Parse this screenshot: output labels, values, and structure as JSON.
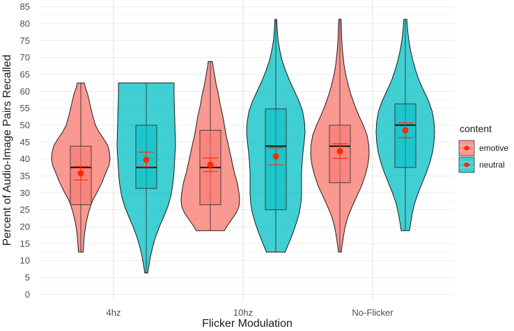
{
  "chart_data": {
    "type": "violin",
    "xlabel": "Flicker Modulation",
    "ylabel": "Percent of Audio-Image Pairs Recalled",
    "categories": [
      "4hz",
      "10hz",
      "No-Flicker"
    ],
    "y_ticks": [
      "0",
      "5",
      "10",
      "15",
      "20",
      "25",
      "30",
      "35",
      "40",
      "45",
      "50",
      "55",
      "60",
      "65",
      "70",
      "75",
      "80",
      "85"
    ],
    "ylim": [
      -2,
      87
    ],
    "grid": true,
    "legend": {
      "title": "content",
      "placement": "right",
      "items": [
        {
          "label": "emotive",
          "color": "#F8766D"
        },
        {
          "label": "neutral",
          "color": "#00BFC4"
        }
      ]
    },
    "point_color": "#ff2a00",
    "series": [
      {
        "name": "emotive",
        "color": "#F8766D",
        "groups": [
          {
            "category": "4hz",
            "min": 12.5,
            "q1": 26.5,
            "median": 37.5,
            "q3": 43.8,
            "max": 62.5,
            "mean": 35.8,
            "se_low": 33.8,
            "se_high": 37.8,
            "density": [
              [
                12.5,
                0.08
              ],
              [
                15,
                0.1
              ],
              [
                18,
                0.13
              ],
              [
                21,
                0.18
              ],
              [
                24,
                0.26
              ],
              [
                26.5,
                0.35
              ],
              [
                28,
                0.42
              ],
              [
                30,
                0.55
              ],
              [
                33,
                0.72
              ],
              [
                36,
                0.86
              ],
              [
                38,
                0.96
              ],
              [
                40,
                1.0
              ],
              [
                42,
                0.98
              ],
              [
                44,
                0.92
              ],
              [
                46,
                0.78
              ],
              [
                48,
                0.62
              ],
              [
                50,
                0.5
              ],
              [
                53,
                0.4
              ],
              [
                56,
                0.32
              ],
              [
                59,
                0.24
              ],
              [
                61,
                0.16
              ],
              [
                62.5,
                0.12
              ]
            ]
          },
          {
            "category": "10hz",
            "min": 18.8,
            "q1": 26.5,
            "median": 37.5,
            "q3": 48.5,
            "max": 68.8,
            "mean": 38.3,
            "se_low": 36.3,
            "se_high": 40.3,
            "density": [
              [
                18.8,
                0.48
              ],
              [
                20,
                0.56
              ],
              [
                22,
                0.72
              ],
              [
                24,
                0.88
              ],
              [
                26,
                0.98
              ],
              [
                28,
                1.0
              ],
              [
                30,
                0.98
              ],
              [
                33,
                0.92
              ],
              [
                36,
                0.82
              ],
              [
                40,
                0.72
              ],
              [
                44,
                0.62
              ],
              [
                47,
                0.54
              ],
              [
                50,
                0.48
              ],
              [
                53,
                0.42
              ],
              [
                56,
                0.34
              ],
              [
                59,
                0.28
              ],
              [
                62,
                0.2
              ],
              [
                65,
                0.14
              ],
              [
                67,
                0.1
              ],
              [
                68.8,
                0.07
              ]
            ]
          },
          {
            "category": "No-Flicker",
            "min": 12.5,
            "q1": 33.0,
            "median": 43.8,
            "q3": 50.0,
            "max": 81.3,
            "mean": 42.3,
            "se_low": 40.2,
            "se_high": 44.5,
            "density": [
              [
                12.5,
                0.05
              ],
              [
                14,
                0.07
              ],
              [
                17,
                0.12
              ],
              [
                20,
                0.18
              ],
              [
                23,
                0.28
              ],
              [
                26,
                0.42
              ],
              [
                29,
                0.58
              ],
              [
                32,
                0.74
              ],
              [
                35,
                0.86
              ],
              [
                38,
                0.95
              ],
              [
                41,
                1.0
              ],
              [
                44,
                0.99
              ],
              [
                47,
                0.93
              ],
              [
                50,
                0.8
              ],
              [
                53,
                0.64
              ],
              [
                56,
                0.5
              ],
              [
                59,
                0.38
              ],
              [
                62,
                0.28
              ],
              [
                65,
                0.2
              ],
              [
                68,
                0.14
              ],
              [
                72,
                0.09
              ],
              [
                76,
                0.06
              ],
              [
                79,
                0.05
              ],
              [
                81.3,
                0.04
              ]
            ]
          }
        ]
      },
      {
        "name": "neutral",
        "color": "#00BFC4",
        "groups": [
          {
            "category": "4hz",
            "min": 6.3,
            "q1": 31.3,
            "median": 37.5,
            "q3": 50.0,
            "max": 62.5,
            "mean": 39.8,
            "se_low": 37.7,
            "se_high": 42.0,
            "density": [
              [
                6.3,
                0.05
              ],
              [
                8,
                0.08
              ],
              [
                11,
                0.14
              ],
              [
                14,
                0.22
              ],
              [
                17,
                0.32
              ],
              [
                20,
                0.45
              ],
              [
                23,
                0.6
              ],
              [
                26,
                0.74
              ],
              [
                29,
                0.84
              ],
              [
                32,
                0.9
              ],
              [
                35,
                0.94
              ],
              [
                38,
                0.96
              ],
              [
                41,
                0.98
              ],
              [
                44,
                1.0
              ],
              [
                47,
                0.99
              ],
              [
                50,
                0.98
              ],
              [
                53,
                0.97
              ],
              [
                56,
                0.96
              ],
              [
                59,
                0.95
              ],
              [
                61,
                0.95
              ],
              [
                62.5,
                0.95
              ]
            ]
          },
          {
            "category": "10hz",
            "min": 12.5,
            "q1": 25.0,
            "median": 43.8,
            "q3": 54.8,
            "max": 81.3,
            "mean": 40.8,
            "se_low": 38.3,
            "se_high": 43.3,
            "density": [
              [
                12.5,
                0.32
              ],
              [
                15,
                0.44
              ],
              [
                18,
                0.58
              ],
              [
                21,
                0.7
              ],
              [
                24,
                0.8
              ],
              [
                27,
                0.86
              ],
              [
                30,
                0.88
              ],
              [
                33,
                0.88
              ],
              [
                36,
                0.88
              ],
              [
                39,
                0.9
              ],
              [
                42,
                0.93
              ],
              [
                45,
                0.97
              ],
              [
                48,
                1.0
              ],
              [
                51,
                0.98
              ],
              [
                54,
                0.92
              ],
              [
                57,
                0.8
              ],
              [
                60,
                0.64
              ],
              [
                63,
                0.48
              ],
              [
                66,
                0.34
              ],
              [
                69,
                0.22
              ],
              [
                72,
                0.14
              ],
              [
                75,
                0.08
              ],
              [
                78,
                0.05
              ],
              [
                81.3,
                0.03
              ]
            ]
          },
          {
            "category": "No-Flicker",
            "min": 18.8,
            "q1": 37.5,
            "median": 50.0,
            "q3": 56.3,
            "max": 81.3,
            "mean": 48.5,
            "se_low": 46.3,
            "se_high": 50.7,
            "density": [
              [
                18.8,
                0.14
              ],
              [
                21,
                0.18
              ],
              [
                24,
                0.24
              ],
              [
                27,
                0.32
              ],
              [
                30,
                0.44
              ],
              [
                33,
                0.58
              ],
              [
                36,
                0.72
              ],
              [
                39,
                0.84
              ],
              [
                42,
                0.93
              ],
              [
                45,
                0.98
              ],
              [
                48,
                1.0
              ],
              [
                51,
                0.98
              ],
              [
                54,
                0.92
              ],
              [
                57,
                0.8
              ],
              [
                60,
                0.64
              ],
              [
                63,
                0.48
              ],
              [
                66,
                0.36
              ],
              [
                69,
                0.26
              ],
              [
                72,
                0.18
              ],
              [
                75,
                0.12
              ],
              [
                78,
                0.08
              ],
              [
                81.3,
                0.05
              ]
            ]
          }
        ]
      }
    ]
  }
}
